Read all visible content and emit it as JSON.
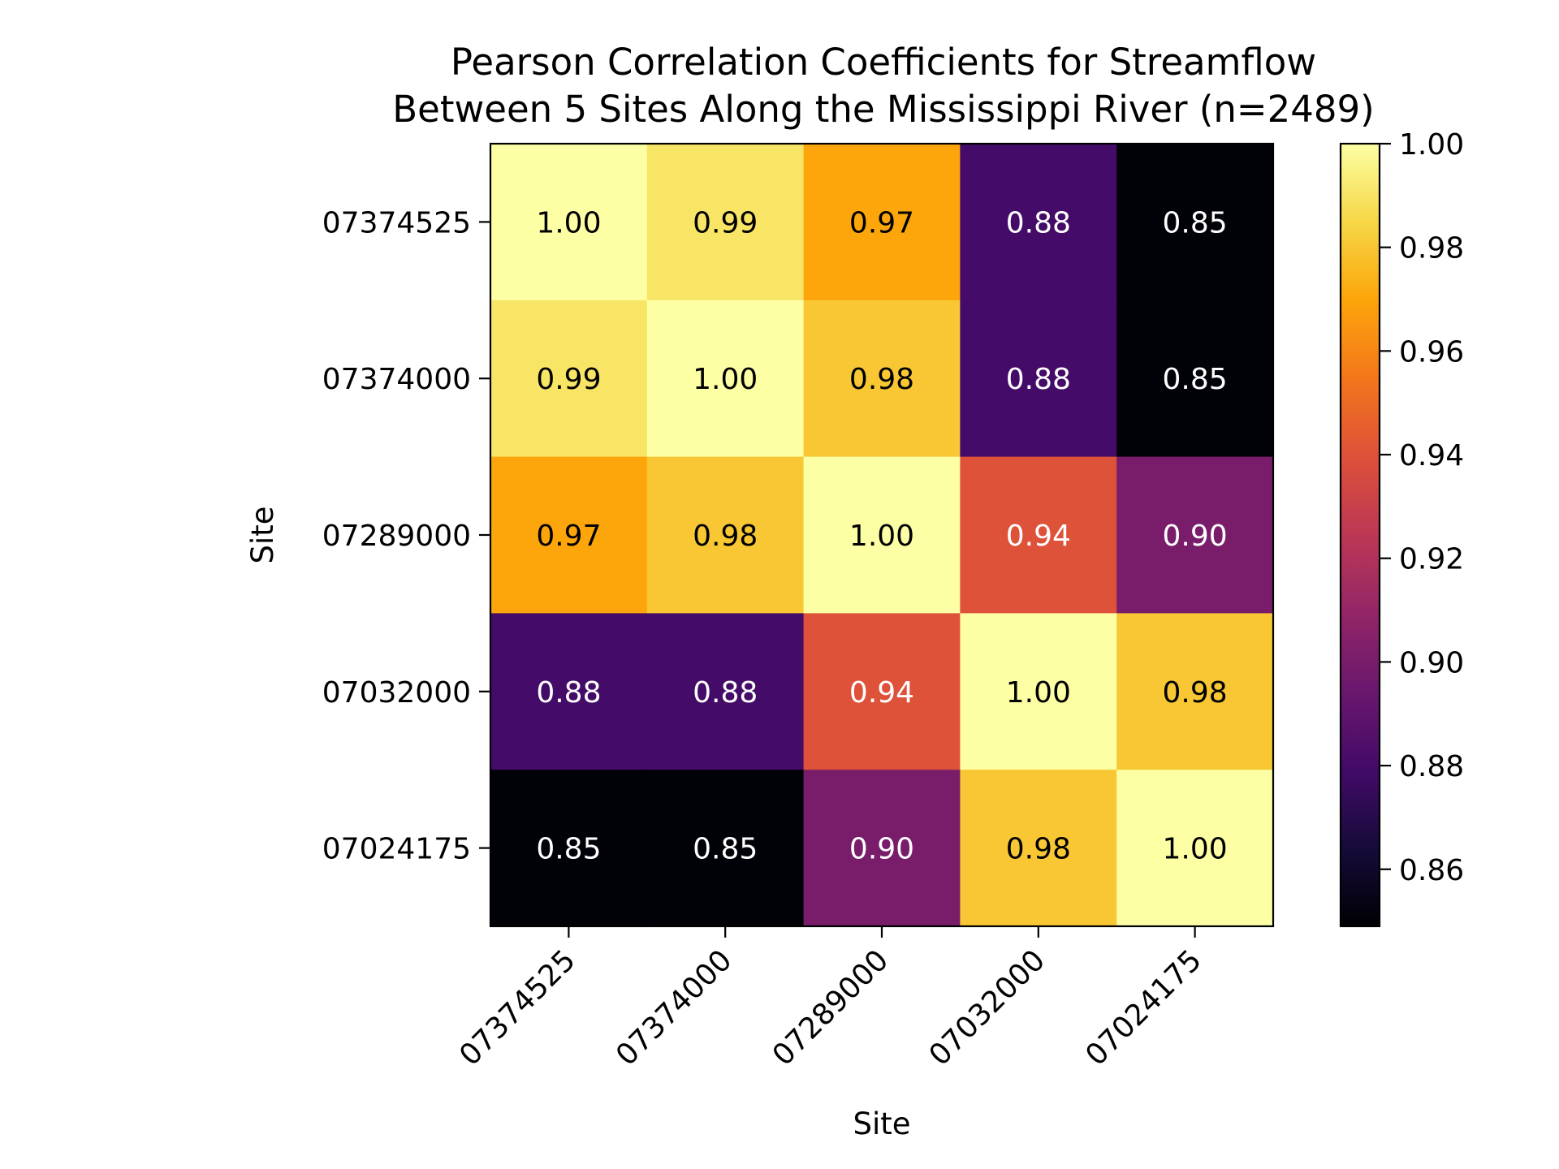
{
  "chart_data": {
    "type": "heatmap",
    "title_line1": "Pearson Correlation Coefficients for Streamflow",
    "title_line2": "Between 5 Sites Along the Mississippi River (n=2489)",
    "xlabel": "Site",
    "ylabel": "Site",
    "x_categories": [
      "07374525",
      "07374000",
      "07289000",
      "07032000",
      "07024175"
    ],
    "y_categories": [
      "07374525",
      "07374000",
      "07289000",
      "07032000",
      "07024175"
    ],
    "values": [
      [
        1.0,
        0.99,
        0.97,
        0.88,
        0.85
      ],
      [
        0.99,
        1.0,
        0.98,
        0.88,
        0.85
      ],
      [
        0.97,
        0.98,
        1.0,
        0.94,
        0.9
      ],
      [
        0.88,
        0.88,
        0.94,
        1.0,
        0.98
      ],
      [
        0.85,
        0.85,
        0.9,
        0.98,
        1.0
      ]
    ],
    "value_format": "0.00",
    "colormap": "inferno",
    "colorbar": {
      "min": 0.849,
      "max": 1.0,
      "ticks": [
        "0.86",
        "0.88",
        "0.90",
        "0.92",
        "0.94",
        "0.96",
        "0.98",
        "1.00"
      ],
      "tick_values": [
        0.86,
        0.88,
        0.9,
        0.92,
        0.94,
        0.96,
        0.98,
        1.0
      ]
    },
    "grid": false
  }
}
